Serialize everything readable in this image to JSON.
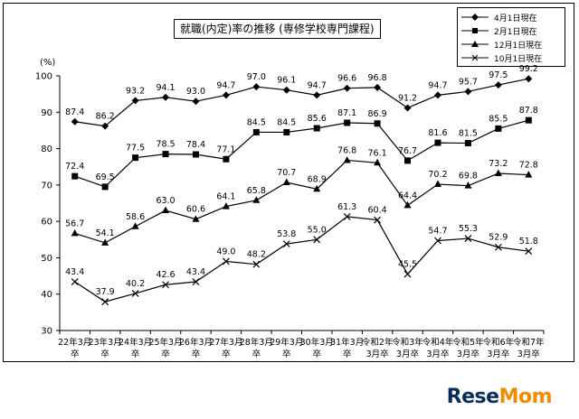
{
  "chart_data": {
    "type": "line",
    "title": "就職(内定)率の推移 (専修学校専門課程)",
    "ylabel": "(%)",
    "ylim": [
      30,
      100
    ],
    "yticks": [
      30,
      40,
      50,
      60,
      70,
      80,
      90,
      100
    ],
    "categories": [
      [
        "22年3月",
        "卒"
      ],
      [
        "23年3月",
        "卒"
      ],
      [
        "24年3月",
        "卒"
      ],
      [
        "25年3月",
        "卒"
      ],
      [
        "26年3月",
        "卒"
      ],
      [
        "27年3月",
        "卒"
      ],
      [
        "28年3月",
        "卒"
      ],
      [
        "29年3月",
        "卒"
      ],
      [
        "30年3月",
        "卒"
      ],
      [
        "31年3月",
        "卒"
      ],
      [
        "令和2年",
        "3月卒"
      ],
      [
        "令和3年",
        "3月卒"
      ],
      [
        "令和4年",
        "3月卒"
      ],
      [
        "令和5年",
        "3月卒"
      ],
      [
        "令和6年",
        "3月卒"
      ],
      [
        "令和7年",
        "3月卒"
      ]
    ],
    "series": [
      {
        "name": "4月1日現在",
        "marker": "diamond",
        "values": [
          87.4,
          86.2,
          93.2,
          94.1,
          93.0,
          94.7,
          97.0,
          96.1,
          94.7,
          96.6,
          96.8,
          91.2,
          94.7,
          95.7,
          97.5,
          99.2
        ]
      },
      {
        "name": "2月1日現在",
        "marker": "square",
        "values": [
          72.4,
          69.5,
          77.5,
          78.5,
          78.4,
          77.1,
          84.5,
          84.5,
          85.6,
          87.1,
          86.9,
          76.7,
          81.6,
          81.5,
          85.5,
          87.8
        ]
      },
      {
        "name": "12月1日現在",
        "marker": "triangle",
        "values": [
          56.7,
          54.1,
          58.6,
          63.0,
          60.6,
          64.1,
          65.8,
          70.7,
          68.9,
          76.8,
          76.1,
          64.4,
          70.2,
          69.8,
          73.2,
          72.8
        ]
      },
      {
        "name": "10月1日現在",
        "marker": "x",
        "values": [
          43.4,
          37.9,
          40.2,
          42.6,
          43.4,
          49.0,
          48.2,
          53.8,
          55.0,
          61.3,
          60.4,
          45.5,
          54.7,
          55.3,
          52.9,
          51.8
        ]
      }
    ],
    "legend": "top-right",
    "grid": false
  },
  "brand": {
    "text_main": "Rese",
    "text_accent": "Mom"
  }
}
